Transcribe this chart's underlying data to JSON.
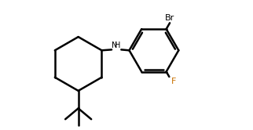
{
  "bg_color": "#ffffff",
  "line_color": "#000000",
  "label_color_Br": "#000000",
  "label_color_F": "#c87000",
  "label_color_NH": "#000000",
  "bond_lw": 1.8,
  "figsize": [
    3.22,
    1.66
  ],
  "dpi": 100,
  "xlim": [
    0,
    9.5
  ],
  "ylim": [
    0,
    5.5
  ]
}
